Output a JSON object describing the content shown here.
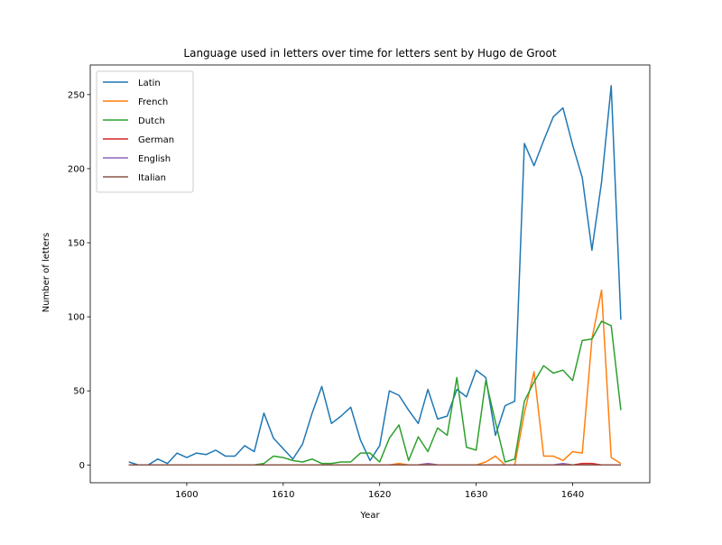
{
  "chart_data": {
    "type": "line",
    "title": "Language used in letters over time for letters sent by Hugo de Groot",
    "xlabel": "Year",
    "ylabel": "Number of letters",
    "xlim": [
      1590,
      1648
    ],
    "ylim": [
      -12,
      270
    ],
    "xticks": [
      1600,
      1610,
      1620,
      1630,
      1640
    ],
    "yticks": [
      0,
      50,
      100,
      150,
      200,
      250
    ],
    "grid": false,
    "legend_position": "top-left",
    "x": [
      1594,
      1595,
      1596,
      1597,
      1598,
      1599,
      1600,
      1601,
      1602,
      1603,
      1604,
      1605,
      1606,
      1607,
      1608,
      1609,
      1610,
      1611,
      1612,
      1613,
      1614,
      1615,
      1616,
      1617,
      1618,
      1619,
      1620,
      1621,
      1622,
      1623,
      1624,
      1625,
      1626,
      1627,
      1628,
      1629,
      1630,
      1631,
      1632,
      1633,
      1634,
      1635,
      1636,
      1637,
      1638,
      1639,
      1640,
      1641,
      1642,
      1643,
      1644,
      1645
    ],
    "series": [
      {
        "name": "Latin",
        "color": "#1f77b4",
        "values": [
          2,
          0,
          0,
          4,
          1,
          8,
          5,
          8,
          7,
          10,
          6,
          6,
          13,
          9,
          35,
          18,
          11,
          4,
          14,
          35,
          53,
          28,
          33,
          39,
          17,
          3,
          13,
          50,
          47,
          37,
          28,
          51,
          31,
          33,
          51,
          46,
          64,
          59,
          20,
          40,
          43,
          217,
          202,
          219,
          235,
          241,
          216,
          194,
          145,
          191,
          256,
          98
        ]
      },
      {
        "name": "French",
        "color": "#ff7f0e",
        "values": [
          0,
          0,
          0,
          0,
          0,
          0,
          0,
          0,
          0,
          0,
          0,
          0,
          0,
          0,
          0,
          0,
          0,
          0,
          0,
          0,
          0,
          0,
          0,
          0,
          0,
          0,
          0,
          0,
          1,
          0,
          0,
          1,
          0,
          0,
          0,
          0,
          0,
          2,
          6,
          0,
          0,
          35,
          63,
          6,
          6,
          3,
          9,
          8,
          85,
          118,
          5,
          1
        ]
      },
      {
        "name": "Dutch",
        "color": "#2ca02c",
        "values": [
          0,
          0,
          0,
          0,
          0,
          0,
          0,
          0,
          0,
          0,
          0,
          0,
          0,
          0,
          1,
          6,
          5,
          3,
          2,
          4,
          1,
          1,
          2,
          2,
          8,
          8,
          2,
          18,
          27,
          3,
          19,
          9,
          25,
          20,
          59,
          12,
          10,
          57,
          29,
          2,
          4,
          43,
          56,
          67,
          62,
          64,
          57,
          84,
          85,
          97,
          94,
          37
        ]
      },
      {
        "name": "German",
        "color": "#d62728",
        "values": [
          0,
          0,
          0,
          0,
          0,
          0,
          0,
          0,
          0,
          0,
          0,
          0,
          0,
          0,
          0,
          0,
          0,
          0,
          0,
          0,
          0,
          0,
          0,
          0,
          0,
          0,
          0,
          0,
          0,
          0,
          0,
          0,
          0,
          0,
          0,
          0,
          0,
          0,
          0,
          0,
          0,
          0,
          0,
          0,
          0,
          0,
          0,
          1,
          1,
          0,
          0,
          0
        ]
      },
      {
        "name": "English",
        "color": "#9467bd",
        "values": [
          0,
          0,
          0,
          0,
          0,
          0,
          0,
          0,
          0,
          0,
          0,
          0,
          0,
          0,
          0,
          0,
          0,
          0,
          0,
          0,
          0,
          0,
          0,
          0,
          0,
          0,
          0,
          0,
          0,
          0,
          0,
          1,
          0,
          0,
          0,
          0,
          0,
          0,
          0,
          0,
          0,
          0,
          0,
          0,
          0,
          1,
          0,
          0,
          0,
          0,
          0,
          0
        ]
      },
      {
        "name": "Italian",
        "color": "#8c564b",
        "values": [
          0,
          0,
          0,
          0,
          0,
          0,
          0,
          0,
          0,
          0,
          0,
          0,
          0,
          0,
          0,
          0,
          0,
          0,
          0,
          0,
          0,
          0,
          0,
          0,
          0,
          0,
          0,
          0,
          0,
          0,
          0,
          0,
          0,
          0,
          0,
          0,
          0,
          0,
          0,
          0,
          0,
          0,
          0,
          0,
          0,
          0,
          0,
          0,
          0,
          0,
          0,
          0
        ]
      }
    ]
  }
}
